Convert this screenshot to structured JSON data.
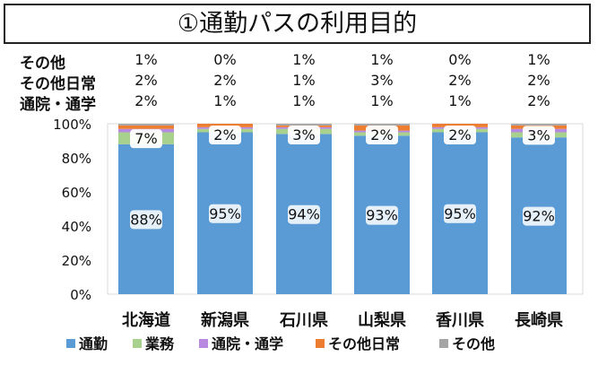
{
  "chart_data": {
    "type": "bar",
    "stacked": true,
    "title": "①通勤パスの利用目的",
    "categories": [
      "北海道",
      "新潟県",
      "石川県",
      "山梨県",
      "香川県",
      "長崎県"
    ],
    "series": [
      {
        "name": "通勤",
        "color": "#5b9bd5",
        "values": [
          88,
          95,
          94,
          93,
          95,
          92
        ],
        "labels": [
          "88%",
          "95%",
          "94%",
          "93%",
          "95%",
          "92%"
        ]
      },
      {
        "name": "業務",
        "color": "#a9d18e",
        "values": [
          7,
          2,
          3,
          2,
          2,
          3
        ],
        "labels": [
          "7%",
          "2%",
          "3%",
          "2%",
          "2%",
          "3%"
        ]
      },
      {
        "name": "通院・通学",
        "color": "#b78ae0",
        "values": [
          2,
          1,
          1,
          1,
          1,
          2
        ]
      },
      {
        "name": "その他日常",
        "color": "#ed7d31",
        "values": [
          2,
          2,
          1,
          3,
          2,
          2
        ]
      },
      {
        "name": "その他",
        "color": "#a5a5a5",
        "values": [
          1,
          0,
          1,
          1,
          0,
          1
        ]
      }
    ],
    "table_rows": [
      {
        "label": "その他",
        "values": [
          "1%",
          "0%",
          "1%",
          "1%",
          "0%",
          "1%"
        ]
      },
      {
        "label": "その他日常",
        "values": [
          "2%",
          "2%",
          "1%",
          "3%",
          "2%",
          "2%"
        ]
      },
      {
        "label": "通院・通学",
        "values": [
          "2%",
          "1%",
          "1%",
          "1%",
          "1%",
          "2%"
        ]
      }
    ],
    "yticks": [
      "0%",
      "20%",
      "40%",
      "60%",
      "80%",
      "100%"
    ],
    "ylim": [
      0,
      100
    ],
    "legend": "bottom"
  }
}
